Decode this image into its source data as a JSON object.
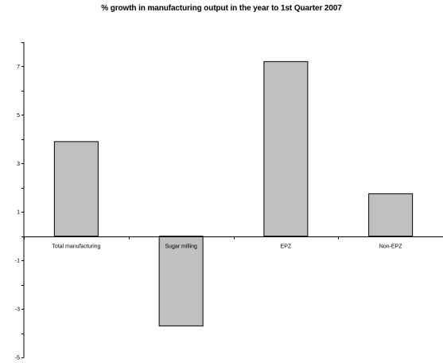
{
  "chart_data": {
    "type": "bar",
    "title": "% growth in manufacturing output in the year to 1st Quarter 2007",
    "categories": [
      "Total manufacturing",
      "Sugar milling",
      "EPZ",
      "Non-EPZ"
    ],
    "values": [
      3.9,
      -3.7,
      7.2,
      1.75
    ],
    "xlabel": "",
    "ylabel": "",
    "ylim": [
      -5,
      8
    ],
    "yticks": [
      "-5",
      "-3",
      "-1",
      "1",
      "3",
      "5",
      "7"
    ],
    "grid": false,
    "legend": "none",
    "colors": {
      "bar_fill": "#c0c0c0",
      "bar_stroke": "#000000",
      "axis": "#000000"
    }
  }
}
